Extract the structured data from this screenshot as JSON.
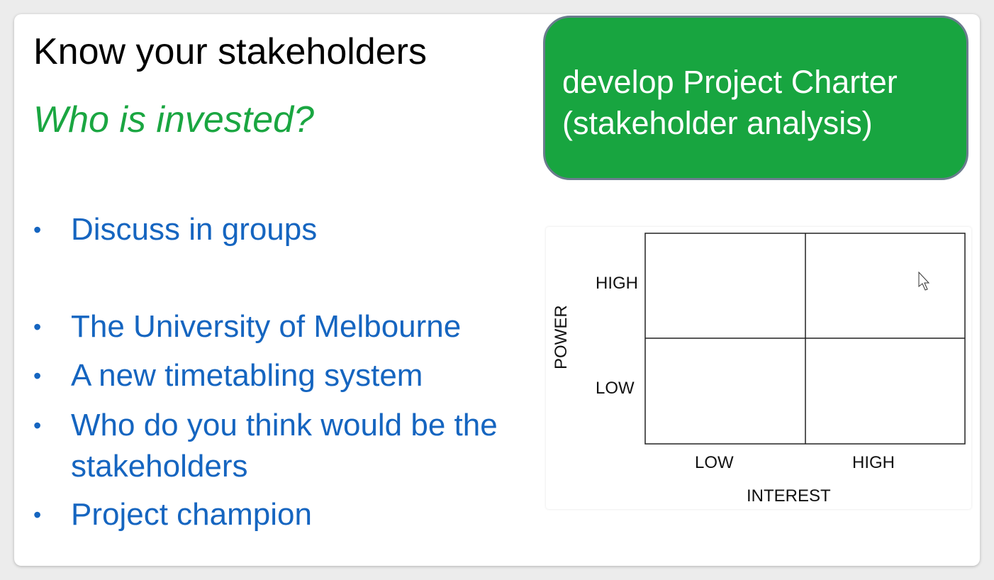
{
  "slide": {
    "title": "Know your stakeholders",
    "subtitle": "Who is invested?",
    "bullet_glyph": "•",
    "bullets": [
      {
        "text": "Discuss in groups"
      },
      {
        "text": "The University of Melbourne"
      },
      {
        "text": "A new timetabling system"
      },
      {
        "text": "Who do you think would be the stakeholders"
      },
      {
        "text": "Project champion"
      }
    ],
    "callout": {
      "line1": "develop Project Charter",
      "line2": "(stakeholder analysis)"
    },
    "matrix": {
      "y_axis_label": "POWER",
      "x_axis_label": "INTEREST",
      "y_high": "HIGH",
      "y_low": "LOW",
      "x_low": "LOW",
      "x_high": "HIGH"
    }
  },
  "colors": {
    "title": "#000000",
    "subtitle": "#1aa641",
    "bullets": "#1565c0",
    "callout_bg": "#18a540",
    "callout_border": "#6b7c8e"
  }
}
